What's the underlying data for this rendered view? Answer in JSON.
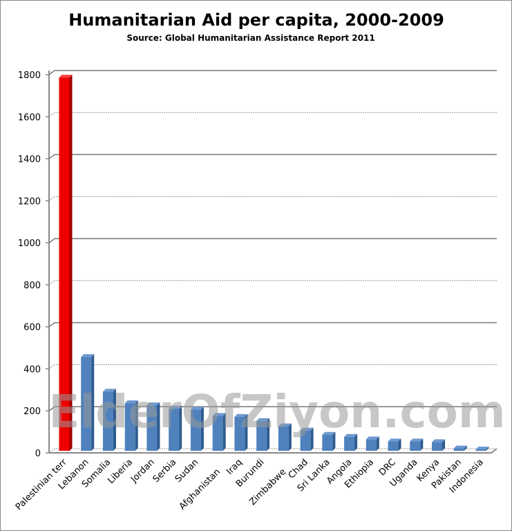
{
  "chart_data": {
    "type": "bar",
    "title": "Humanitarian Aid per capita, 2000-2009",
    "subtitle": "Source: Global Humanitarian Assistance Report 2011",
    "watermark": "ElderOfZiyon.com",
    "xlabel": "",
    "ylabel": "",
    "ylim": [
      0,
      1800
    ],
    "yticks": [
      0,
      200,
      400,
      600,
      800,
      1000,
      1200,
      1400,
      1600,
      1800
    ],
    "grid": true,
    "categories": [
      "Palestinian terr",
      "Lebanon",
      "Somalia",
      "Liberia",
      "Jordan",
      "Serbia",
      "Sudan",
      "Afghanistan",
      "Iraq",
      "Burundi",
      "Zimbabwe",
      "Chad",
      "Sri Lanka",
      "Angola",
      "Ethiopia",
      "DRC",
      "Uganda",
      "Kenya",
      "Pakistan",
      "Indonesia"
    ],
    "values": [
      1780,
      450,
      285,
      230,
      220,
      205,
      200,
      170,
      165,
      145,
      120,
      100,
      80,
      70,
      58,
      48,
      48,
      45,
      15,
      10
    ],
    "colors": {
      "highlight": "#ee0000",
      "default": "#4f81bd"
    }
  }
}
